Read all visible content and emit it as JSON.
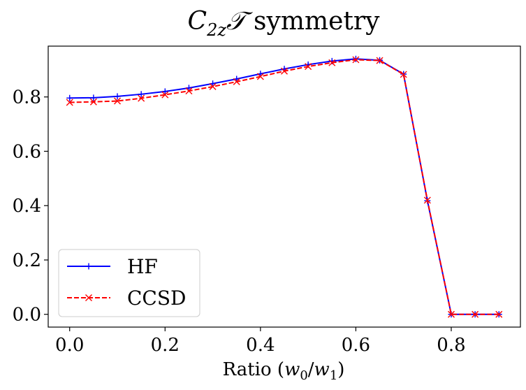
{
  "chart_data": {
    "type": "line",
    "title": {
      "main": "C",
      "sub": "2z",
      "glyph": "𝒯",
      "rest": " symmetry"
    },
    "xlabel": {
      "pre": "Ratio (",
      "var1": "w",
      "sub1": "0",
      "slash": "/",
      "var2": "w",
      "sub2": "1",
      "post": ")"
    },
    "ylabel": "",
    "xlim": [
      -0.045,
      0.945
    ],
    "ylim": [
      -0.047,
      0.987
    ],
    "xticks": [
      0.0,
      0.2,
      0.4,
      0.6,
      0.8
    ],
    "xtick_labels": [
      "0.0",
      "0.2",
      "0.4",
      "0.6",
      "0.8"
    ],
    "yticks": [
      0.0,
      0.2,
      0.4,
      0.6,
      0.8
    ],
    "ytick_labels": [
      "0.0",
      "0.2",
      "0.4",
      "0.6",
      "0.8"
    ],
    "grid": false,
    "legend_position": "lower-left",
    "x": [
      0.0,
      0.05,
      0.1,
      0.15,
      0.2,
      0.25,
      0.3,
      0.35,
      0.4,
      0.45,
      0.5,
      0.55,
      0.6,
      0.65,
      0.7,
      0.75,
      0.8,
      0.85,
      0.9
    ],
    "series": [
      {
        "name": "HF",
        "color": "#0000ff",
        "linestyle": "solid",
        "marker": "plus",
        "values": [
          0.796,
          0.797,
          0.802,
          0.81,
          0.82,
          0.833,
          0.849,
          0.866,
          0.885,
          0.903,
          0.919,
          0.932,
          0.94,
          0.935,
          0.884,
          0.418,
          0.0,
          0.0,
          0.0
        ]
      },
      {
        "name": "CCSD",
        "color": "#ff0000",
        "linestyle": "dashed",
        "marker": "x",
        "values": [
          0.78,
          0.782,
          0.785,
          0.795,
          0.808,
          0.822,
          0.838,
          0.856,
          0.875,
          0.895,
          0.912,
          0.926,
          0.937,
          0.934,
          0.883,
          0.42,
          0.0,
          0.0,
          0.0
        ]
      }
    ]
  }
}
